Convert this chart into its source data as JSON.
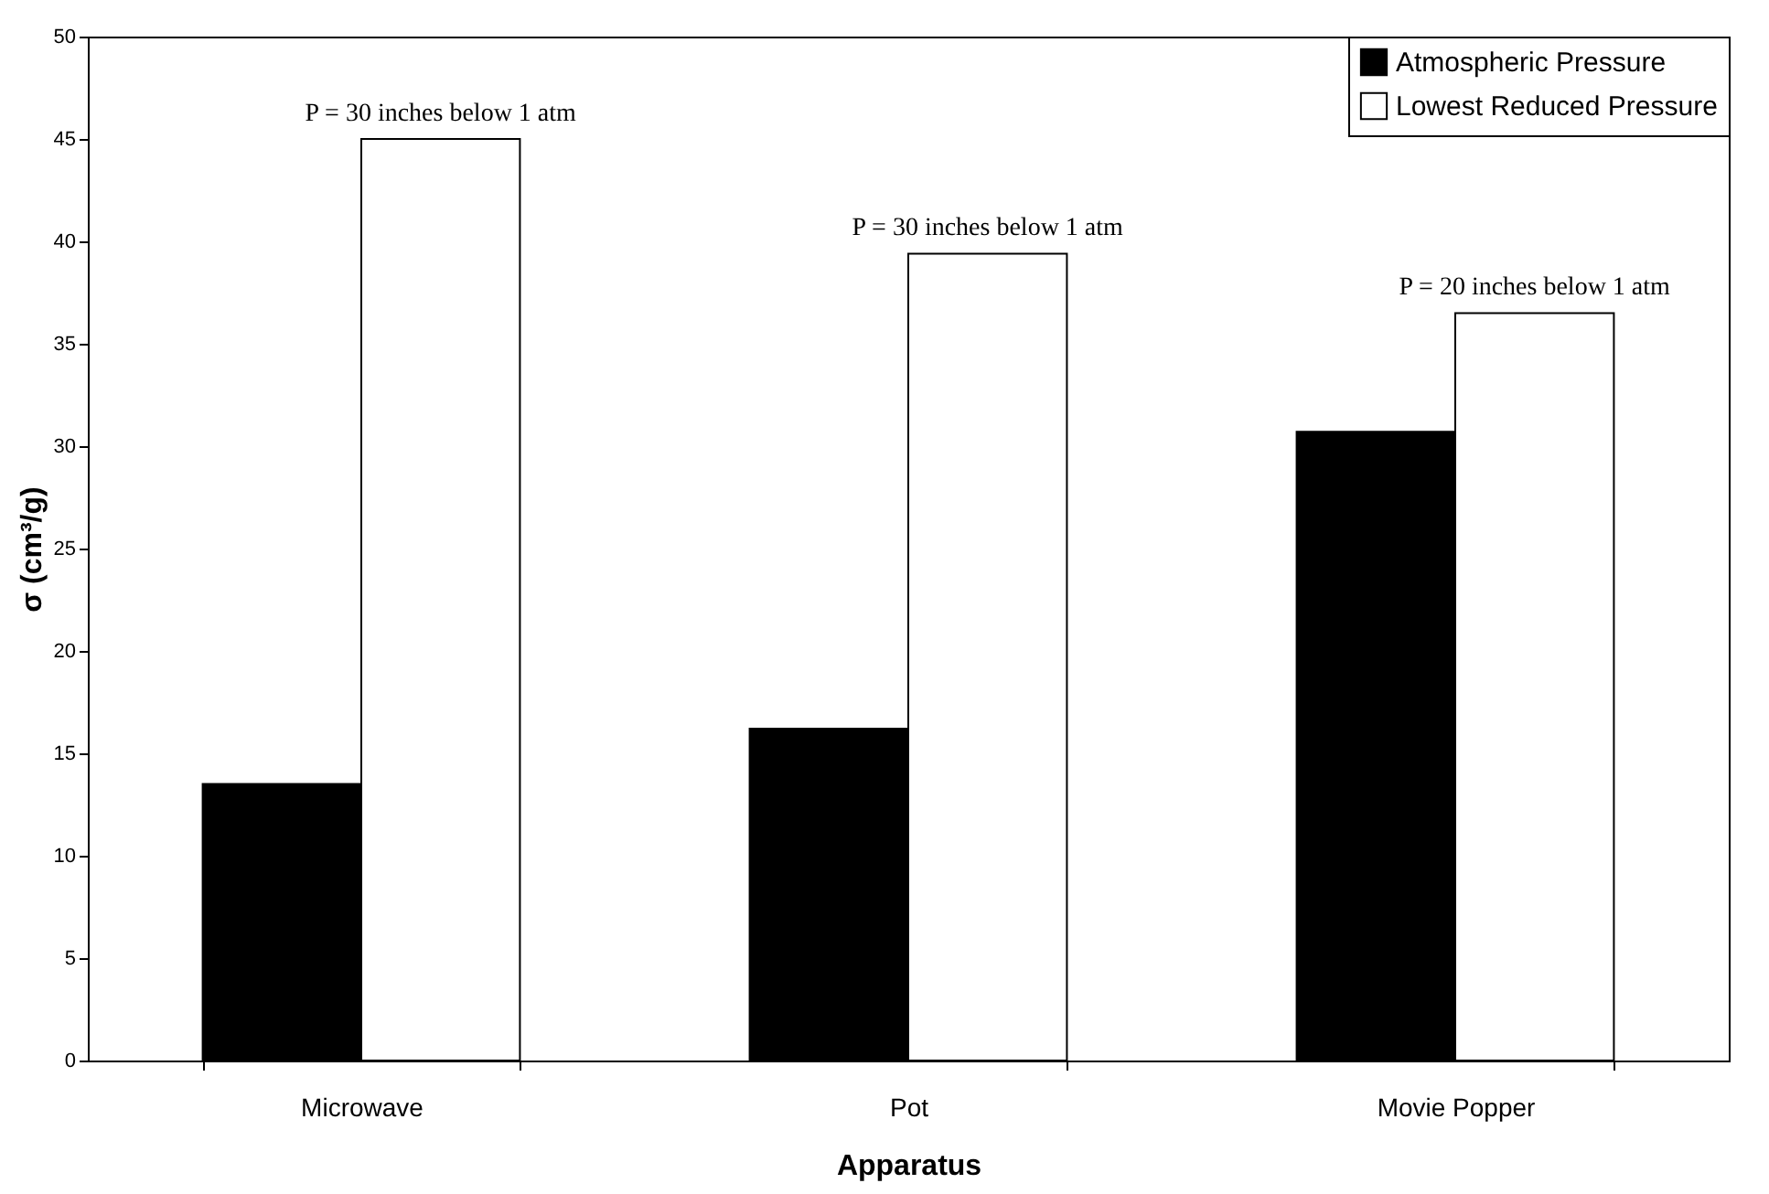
{
  "chart_data": {
    "type": "bar",
    "xlabel": "Apparatus",
    "ylabel": "σ (cm³/g)",
    "categories": [
      "Microwave",
      "Pot",
      "Movie Popper"
    ],
    "series": [
      {
        "name": "Atmospheric Pressure",
        "color": "#000000",
        "values": [
          13.5,
          16.2,
          30.7
        ]
      },
      {
        "name": "Lowest Reduced Pressure",
        "color": "#ffffff",
        "values": [
          45,
          39.4,
          36.5
        ]
      }
    ],
    "ylim": [
      0,
      50
    ],
    "yticks": [
      0,
      5,
      10,
      15,
      20,
      25,
      30,
      35,
      40,
      45,
      50
    ],
    "legend": "top right",
    "annotations": [
      {
        "text": "P = 30 inches below 1 atm",
        "x": "Microwave",
        "y": 45
      },
      {
        "text": "P = 30 inches below 1 atm",
        "x": "Pot",
        "y": 39.4
      },
      {
        "text": "P = 20 inches below 1 atm",
        "x": "Movie Popper",
        "y": 36.5
      }
    ]
  }
}
